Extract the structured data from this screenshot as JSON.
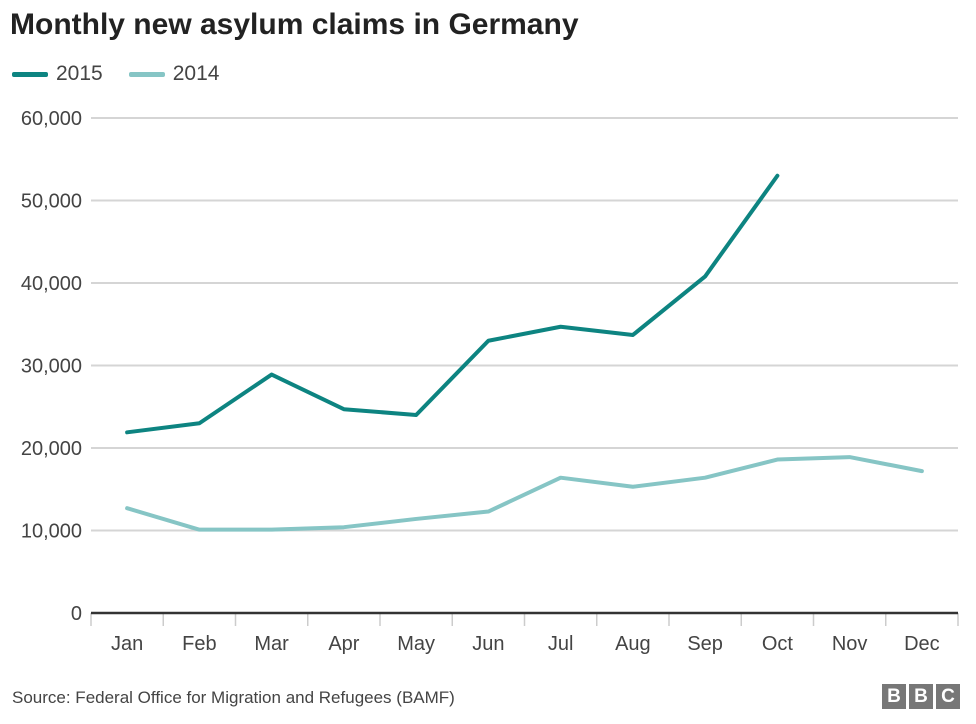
{
  "chart_data": {
    "type": "line",
    "title": "Monthly new asylum claims in Germany",
    "categories": [
      "Jan",
      "Feb",
      "Mar",
      "Apr",
      "May",
      "Jun",
      "Jul",
      "Aug",
      "Sep",
      "Oct",
      "Nov",
      "Dec"
    ],
    "series": [
      {
        "name": "2015",
        "color": "#0d8481",
        "values": [
          21900,
          23000,
          28900,
          24700,
          24000,
          33000,
          34700,
          33700,
          40800,
          53000,
          null,
          null
        ]
      },
      {
        "name": "2014",
        "color": "#86c5c5",
        "values": [
          12700,
          10100,
          10100,
          10400,
          11400,
          12300,
          16400,
          15300,
          16400,
          18600,
          18900,
          17200
        ]
      }
    ],
    "ylim": [
      0,
      60000
    ],
    "yticks": [
      "0",
      "10,000",
      "20,000",
      "30,000",
      "40,000",
      "50,000",
      "60,000"
    ],
    "grid": true,
    "legend": "top-left",
    "source": "Source: Federal Office for Migration and Refugees (BAMF)",
    "logo": "BBC"
  }
}
